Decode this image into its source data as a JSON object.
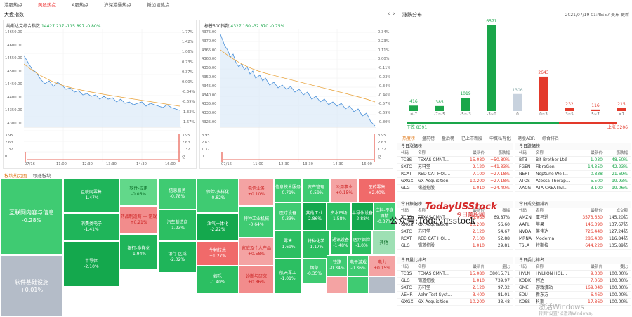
{
  "tabs": [
    "港股热点",
    "美股热点",
    "A股热点",
    "沪深港通热点",
    "新加坡热点"
  ],
  "active_tab": 1,
  "market_index_title": "大盘指数",
  "nav": {
    "prev": "‹",
    "next": "›"
  },
  "nasdaq": {
    "name": "纳斯达克综合指数",
    "price": "14427.237",
    "change": "-115.897",
    "pct": "-0.80%",
    "yleft": [
      "14650.00",
      "14600.00",
      "14550.00",
      "14500.00",
      "14450.00",
      "14400.00",
      "14350.00",
      "14300.00"
    ],
    "yright": [
      "1.77%",
      "1.42%",
      "1.06%",
      "0.73%",
      "0.37%",
      "0.00%",
      "-0.34%",
      "-0.69%",
      "-1.33%",
      "-1.67%"
    ],
    "xticks": [
      "07/16",
      "11:00",
      "12:30",
      "13:30",
      "14:30",
      "16:00"
    ],
    "vleft": [
      "3.95",
      "2.63",
      "1.32",
      "0"
    ],
    "vright": [
      "3.95",
      "2.63",
      "1.32",
      "亿"
    ]
  },
  "sp500": {
    "name": "标普500指数",
    "price": "4327.160",
    "change": "-32.870",
    "pct": "-0.75%",
    "yleft": [
      "4375.00",
      "4370.00",
      "4365.00",
      "4360.00",
      "4355.00",
      "4350.00",
      "4345.00",
      "4340.00",
      "4335.00",
      "4330.00",
      "4325.00"
    ],
    "yright": [
      "0.34%",
      "0.23%",
      "0.11%",
      "0.00%",
      "-0.11%",
      "-0.23%",
      "-0.34%",
      "-0.46%",
      "-0.57%",
      "-0.69%",
      "-0.80%"
    ],
    "xticks": [
      "07/16",
      "11:00",
      "12:30",
      "13:30",
      "14:30",
      "16:00"
    ],
    "vleft": [
      "3.95",
      "2.63",
      "1.32",
      "0"
    ],
    "vright": [
      "3.95",
      "2.63",
      "1.32",
      "亿"
    ]
  },
  "distribution": {
    "title": "涨跌分布",
    "timestamp": "2021/07/19 01:45:57 美东",
    "refresh": "更新",
    "chart_data": {
      "type": "bar",
      "categories": [
        "≤-7",
        "-7~-5",
        "-5~-3",
        "-3~0",
        "0",
        "0~3",
        "3~5",
        "5~7",
        "≥7"
      ],
      "values": [
        416,
        385,
        1019,
        6571,
        1306,
        2643,
        232,
        116,
        215
      ],
      "colors": [
        "#1aa64a",
        "#1aa64a",
        "#1aa64a",
        "#1aa64a",
        "#c8d2de",
        "#e3392a",
        "#e3392a",
        "#e3392a",
        "#e3392a"
      ]
    },
    "down_label": "下跌 8391",
    "up_label": "上涨 3206"
  },
  "rank_tabs": [
    "热度榜",
    "盘前榜",
    "盘后榜",
    "已上市新股",
    "中概私有化",
    "港股ADR",
    "综合排名"
  ],
  "tables": [
    {
      "title": "今日涨幅榜",
      "headers": [
        "代码",
        "名称",
        "最新价",
        "涨跌幅"
      ],
      "rows": [
        [
          "TCBS",
          "TEXAS CMNT...",
          "15.080",
          "+50.80%"
        ],
        [
          "SXTC",
          "苏轩堂",
          "2.120",
          "+41.33%"
        ],
        [
          "RCAT",
          "RED CAT HOL...",
          "7.100",
          "+27.18%"
        ],
        [
          "GXGX",
          "GX Acquisition",
          "10.200",
          "+27.18%"
        ],
        [
          "GLG",
          "锡道控股",
          "1.010",
          "+24.40%"
        ]
      ]
    },
    {
      "title": "今日跌幅榜",
      "headers": [
        "代码",
        "名称",
        "最新价",
        "涨跌幅"
      ],
      "rows": [
        [
          "BTB",
          "Bit Brother Ltd",
          "1.030",
          "-48.50%"
        ],
        [
          "FGEN",
          "FibroGen",
          "14.350",
          "-42.23%"
        ],
        [
          "NEPT",
          "Neptune Well...",
          "0.838",
          "-21.69%"
        ],
        [
          "ATOS",
          "Atossa Therap...",
          "5.500",
          "-19.93%"
        ],
        [
          "AACG",
          "ATA CREATIVI...",
          "3.100",
          "-19.06%"
        ]
      ]
    },
    {
      "title": "今日振幅榜",
      "headers": [
        "代码",
        "名称",
        "最新价",
        "振幅"
      ],
      "rows": [
        [
          "TCBS",
          "TEXAS CMNT...",
          "15.080",
          "69.87%"
        ],
        [
          "GXGX",
          "GX Acquisition",
          "10.200",
          "56.60"
        ],
        [
          "SXTC",
          "苏轩堂",
          "2.120",
          "54.67"
        ],
        [
          "RCAT",
          "RED CAT HOL...",
          "7.100",
          "52.88"
        ],
        [
          "GLG",
          "锡道控股",
          "1.010",
          "29.81"
        ]
      ]
    },
    {
      "title": "今日成交额排名",
      "headers": [
        "代码",
        "名称",
        "最新价",
        "成交额"
      ],
      "rows": [
        [
          "AMZN",
          "亚马逊",
          "3573.630",
          "145.20亿"
        ],
        [
          "AAPL",
          "苹果",
          "146.390",
          "137.67亿"
        ],
        [
          "NVDA",
          "英伟达",
          "726.440",
          "127.24亿"
        ],
        [
          "MRNA",
          "Moderna",
          "286.430",
          "116.84亿"
        ],
        [
          "TSLA",
          "特斯拉",
          "644.220",
          "105.89亿"
        ]
      ]
    },
    {
      "title": "今日量比排名",
      "headers": [
        "代码",
        "名称",
        "最新价",
        "量比"
      ],
      "rows": [
        [
          "TCBS",
          "TEXAS CMNT...",
          "15.080",
          "38015.71"
        ],
        [
          "GLG",
          "锡道控股",
          "1.010",
          "739.97"
        ],
        [
          "SXTC",
          "苏轩堂",
          "2.120",
          "97.32"
        ],
        [
          "AEHR",
          "Aehr Test Syst...",
          "3.400",
          "81.01"
        ],
        [
          "GXGX",
          "GX Acquisition",
          "10.200",
          "33.48"
        ]
      ]
    },
    {
      "title": "今日委比排名",
      "headers": [
        "代码",
        "名称",
        "最新价",
        "委比"
      ],
      "rows": [
        [
          "HYLN",
          "HYLIION HOL...",
          "9.330",
          "100.00%"
        ],
        [
          "KODK",
          "柯达",
          "7.060",
          "100.00%"
        ],
        [
          "GME",
          "游戏驿站",
          "169.040",
          "100.00%"
        ],
        [
          "EDU",
          "新东方",
          "6.460",
          "100.00%"
        ],
        [
          "KOSS",
          "科斯",
          "17.860",
          "100.00%"
        ]
      ]
    }
  ],
  "heatmap": {
    "tabs": [
      "板块热力图",
      "领涨板块"
    ],
    "cells": [
      {
        "name": "互联网内容与信息",
        "pct": "-0.28%",
        "color": "#3fcb72"
      },
      {
        "name": "软件基础设施",
        "pct": "+0.01%",
        "color": "#b4bcc8"
      },
      {
        "name": "互联网零售",
        "pct": "-1.47%",
        "color": "#1fb55a"
      },
      {
        "name": "消费类电子",
        "pct": "-1.41%",
        "color": "#1fb55a"
      },
      {
        "name": "半导体",
        "pct": "-2.10%",
        "color": "#14a84d"
      },
      {
        "name": "软件-应用",
        "pct": "-0.06%",
        "color": "#62d88a"
      },
      {
        "name": "药品制造商 — 常规",
        "pct": "+0.21%",
        "color": "#f28c8c"
      },
      {
        "name": "银行-多样化",
        "pct": "-1.94%",
        "color": "#1fb55a"
      },
      {
        "name": "信息服务",
        "pct": "-0.78%",
        "color": "#3fcb72"
      },
      {
        "name": "汽车制造商",
        "pct": "-1.23%",
        "color": "#2cbf62"
      },
      {
        "name": "银行-区域",
        "pct": "-2.02%",
        "color": "#1fb55a"
      },
      {
        "name": "保险-多样化",
        "pct": "-0.82%",
        "color": "#3fcb72"
      },
      {
        "name": "油气一体化",
        "pct": "-2.22%",
        "color": "#14a84d"
      },
      {
        "name": "生物技术",
        "pct": "+1.27%",
        "color": "#f06a6a"
      },
      {
        "name": "娱乐",
        "pct": "-1.40%",
        "color": "#2cbf62"
      },
      {
        "name": "电信业务",
        "pct": "+0.10%",
        "color": "#f4a3a3"
      },
      {
        "name": "特种工业机械",
        "pct": "-0.64%",
        "color": "#3fcb72"
      },
      {
        "name": "家庭及个人产品",
        "pct": "+0.58%",
        "color": "#f4a3a3"
      },
      {
        "name": "诊断与研究",
        "pct": "+0.86%",
        "color": "#f28c8c"
      },
      {
        "name": "信息技术服务",
        "pct": "-0.71%",
        "color": "#3fcb72"
      },
      {
        "name": "医疗设备",
        "pct": "-0.33%",
        "color": "#3fcb72"
      },
      {
        "name": "零售",
        "pct": "-1.69%",
        "color": "#2cbf62"
      },
      {
        "name": "航天军工",
        "pct": "-1.01%",
        "color": "#2cbf62"
      },
      {
        "name": "资产管理",
        "pct": "-0.59%",
        "color": "#3fcb72"
      },
      {
        "name": "其他工业",
        "pct": "-2.86%",
        "color": "#14a84d"
      },
      {
        "name": "特种化学",
        "pct": "-1.17%",
        "color": "#2cbf62"
      },
      {
        "name": "资本市场",
        "pct": "-1.58%",
        "color": "#2cbf62"
      },
      {
        "name": "公用事业",
        "pct": "+0.15%",
        "color": "#f4a3a3"
      },
      {
        "name": "半导体设备",
        "pct": "-2.88%",
        "color": "#14a84d"
      },
      {
        "name": "通讯设备",
        "pct": "-1.48%",
        "color": "#2cbf62"
      },
      {
        "name": "医药零售",
        "pct": "+2.40%",
        "color": "#f06a6a"
      },
      {
        "name": "饮料-不含酒精",
        "pct": "-0.37%",
        "color": "#3fcb72"
      },
      {
        "name": "医疗保险",
        "pct": "-1.0%",
        "color": "#2cbf62"
      },
      {
        "name": "其他",
        "pct": "",
        "color": "#9ee0b4"
      },
      {
        "name": "烟草",
        "pct": "-0.35%",
        "color": "#3fcb72"
      },
      {
        "name": "铁路",
        "pct": "-0.34%",
        "color": "#3fcb72"
      },
      {
        "name": "电子游戏",
        "pct": "-0.36%",
        "color": "#3fcb72"
      },
      {
        "name": "电力",
        "pct": "+0.15%",
        "color": "#f4a3a3"
      },
      {
        "name": "",
        "pct": "",
        "color": "#f4a3a3"
      },
      {
        "name": "",
        "pct": "",
        "color": "#3fcb72"
      },
      {
        "name": "",
        "pct": "",
        "color": "#b4bcc8"
      }
    ]
  },
  "watermark": {
    "brand": "TodayUSStock",
    "sub": "今日美股网",
    "wechat": "公众号:Todayusstock",
    "windows": "激活Windows",
    "windows_sub": "转到\"设置\"以激活Windows。"
  }
}
